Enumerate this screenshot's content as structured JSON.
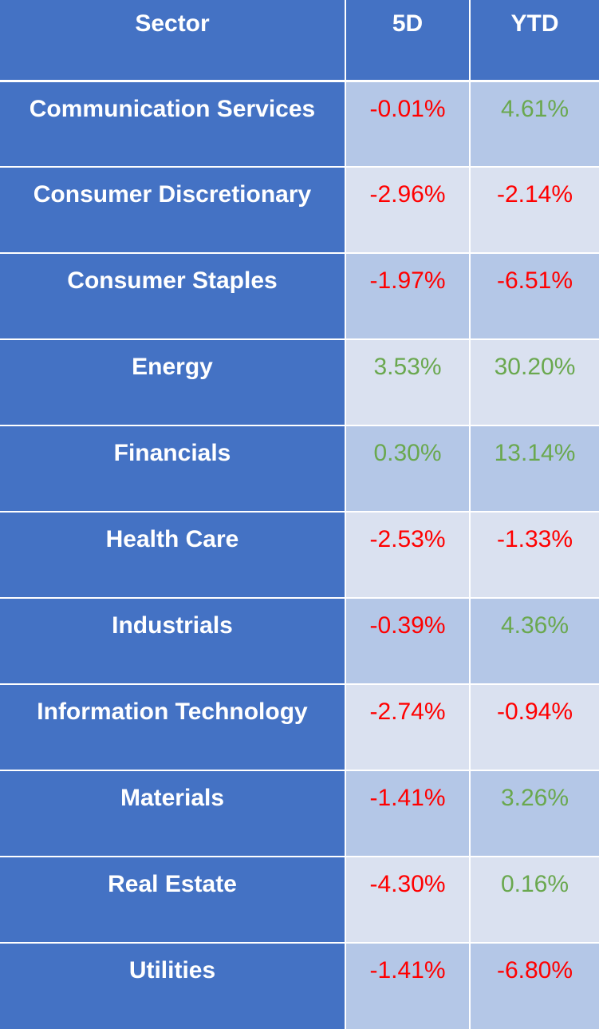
{
  "table": {
    "headers": {
      "sector": "Sector",
      "five_day": "5D",
      "ytd": "YTD"
    },
    "rows": [
      {
        "sector": "Communication Services",
        "five_day": "-0.01%",
        "ytd": "4.61%"
      },
      {
        "sector": "Consumer Discretionary",
        "five_day": "-2.96%",
        "ytd": "-2.14%"
      },
      {
        "sector": "Consumer Staples",
        "five_day": "-1.97%",
        "ytd": "-6.51%"
      },
      {
        "sector": "Energy",
        "five_day": "3.53%",
        "ytd": "30.20%"
      },
      {
        "sector": "Financials",
        "five_day": "0.30%",
        "ytd": "13.14%"
      },
      {
        "sector": "Health Care",
        "five_day": "-2.53%",
        "ytd": "-1.33%"
      },
      {
        "sector": "Industrials",
        "five_day": "-0.39%",
        "ytd": "4.36%"
      },
      {
        "sector": "Information Technology",
        "five_day": "-2.74%",
        "ytd": "-0.94%"
      },
      {
        "sector": "Materials",
        "five_day": "-1.41%",
        "ytd": "3.26%"
      },
      {
        "sector": "Real Estate",
        "five_day": "-4.30%",
        "ytd": "0.16%"
      },
      {
        "sector": "Utilities",
        "five_day": "-1.41%",
        "ytd": "-6.80%"
      }
    ]
  },
  "colors": {
    "header_bg": "#4472c4",
    "sector_bg": "#4472c4",
    "band_dark": "#b4c7e7",
    "band_light": "#dae1f0",
    "negative": "#ff0000",
    "positive": "#6aa84f"
  }
}
